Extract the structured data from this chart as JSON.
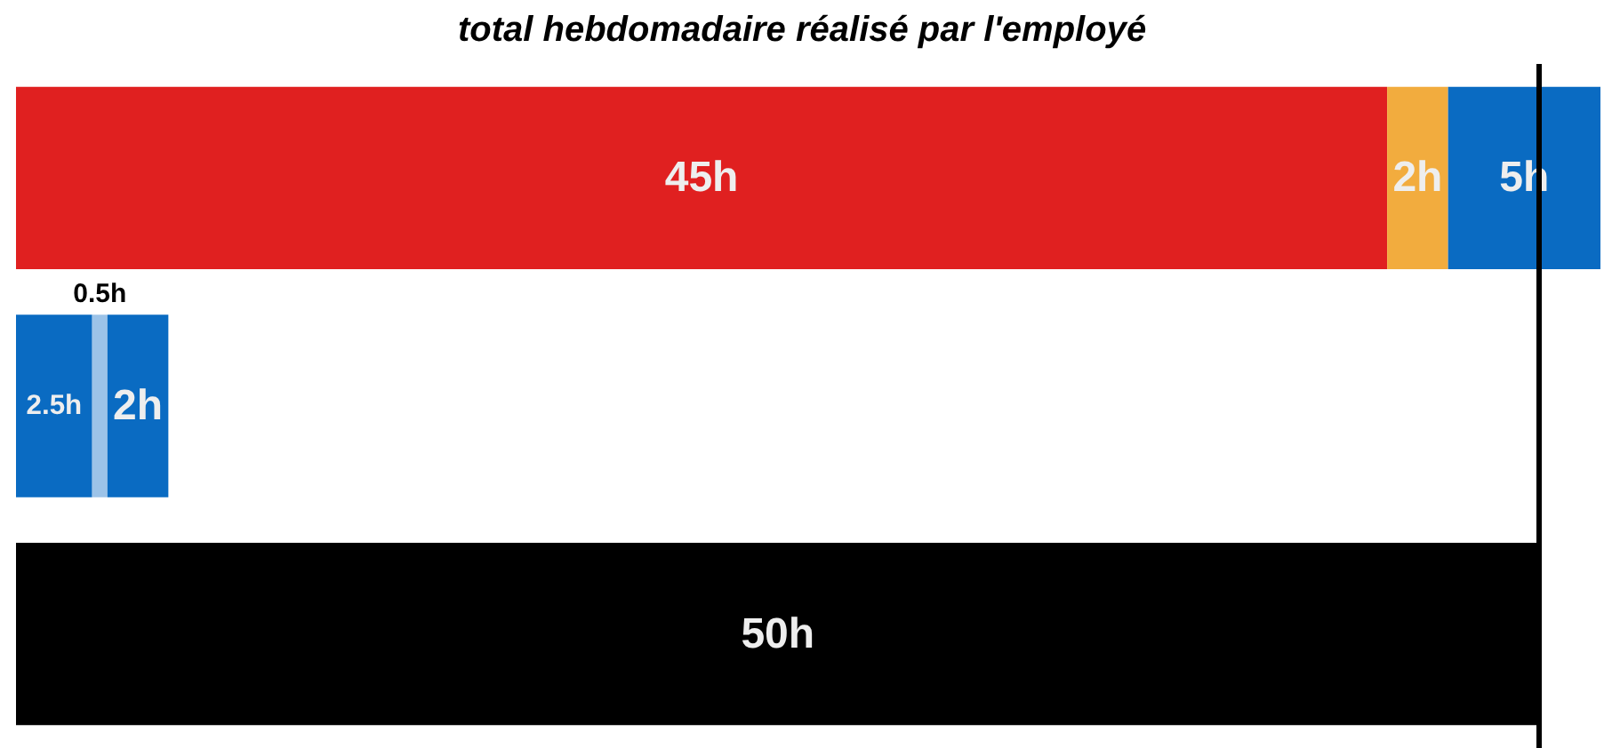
{
  "chart_data": {
    "type": "bar",
    "title": "total hebdomadaire réalisé par l'employé",
    "orientation": "horizontal",
    "stacked": true,
    "categories": [
      null,
      null,
      null
    ],
    "xlim": [
      0,
      52
    ],
    "tick_labels": false,
    "series": [
      {
        "color": "#e02020",
        "values": [
          45,
          null,
          null
        ],
        "value_labels": [
          "45h",
          null,
          null
        ]
      },
      {
        "color": "#f2ac3e",
        "values": [
          2,
          null,
          null
        ],
        "value_labels": [
          "2h",
          null,
          null
        ]
      },
      {
        "color": "#0a6bc2",
        "values": [
          5,
          null,
          null
        ],
        "value_labels": [
          "5h",
          null,
          null
        ]
      },
      {
        "color": "#0a6bc2",
        "values": [
          null,
          2.5,
          null
        ],
        "value_labels": [
          null,
          "2.5h",
          null
        ]
      },
      {
        "color": "#9cc3e8",
        "values": [
          null,
          0.5,
          null
        ],
        "value_labels": [
          null,
          "0.5h",
          null
        ]
      },
      {
        "color": "#0a6bc2",
        "values": [
          null,
          2,
          null
        ],
        "value_labels": [
          null,
          "2h",
          null
        ]
      },
      {
        "color": "#000000",
        "values": [
          null,
          null,
          50
        ],
        "value_labels": [
          null,
          null,
          "50h"
        ]
      }
    ],
    "ref_lines": [
      {
        "axis": "x",
        "value": 50,
        "color": "#000000"
      }
    ]
  }
}
